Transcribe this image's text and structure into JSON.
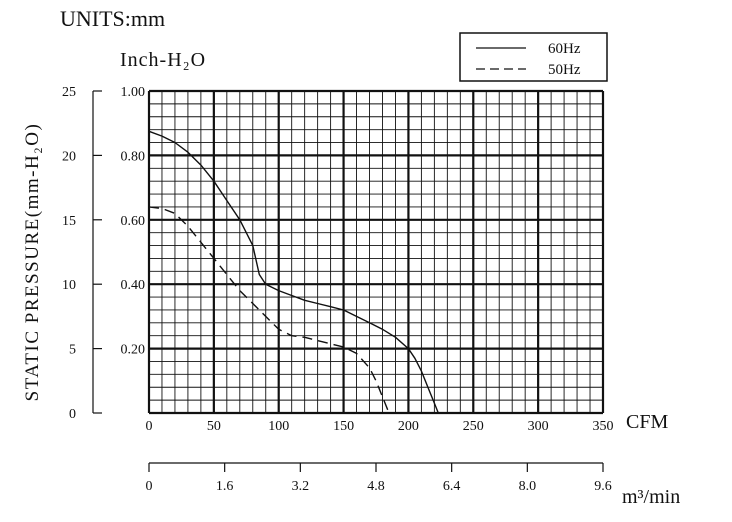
{
  "units_label": "UNITS:mm",
  "inch_label": "Inch-H₂O",
  "y_axis_label": "STATIC PRESSURE(mm-H₂O)",
  "chart_data": {
    "type": "line",
    "x_unit": "CFM",
    "xlim": [
      0,
      350
    ],
    "x_ticks": [
      0,
      50,
      100,
      150,
      200,
      250,
      300,
      350
    ],
    "x_tick_labels": [
      "0",
      "50",
      "100",
      "150",
      "200",
      "250",
      "300",
      "350"
    ],
    "secondary_x_unit": "m³/min",
    "secondary_xlim": [
      0,
      9.6
    ],
    "secondary_x_tick_labels": [
      "0",
      "1.6",
      "3.2",
      "4.8",
      "6.4",
      "8.0",
      "9.6"
    ],
    "ylim_inch": [
      0,
      1.0
    ],
    "y_inch_tick_labels": [
      "0.20",
      "0.40",
      "0.60",
      "0.80",
      "1.00"
    ],
    "ylim_mm": [
      0,
      25
    ],
    "y_mm_tick_labels": [
      "0",
      "5",
      "10",
      "15",
      "20",
      "25"
    ],
    "grid": true,
    "legend_position": "top-right",
    "series": [
      {
        "name": "60Hz",
        "style": "solid",
        "x": [
          0,
          10,
          20,
          30,
          40,
          50,
          60,
          70,
          80,
          85,
          90,
          100,
          110,
          120,
          130,
          140,
          150,
          160,
          170,
          180,
          190,
          200,
          205,
          210,
          215,
          220,
          223
        ],
        "y": [
          0.875,
          0.86,
          0.84,
          0.81,
          0.77,
          0.72,
          0.66,
          0.6,
          0.52,
          0.43,
          0.4,
          0.38,
          0.365,
          0.35,
          0.34,
          0.33,
          0.32,
          0.3,
          0.28,
          0.26,
          0.235,
          0.2,
          0.17,
          0.13,
          0.08,
          0.03,
          0
        ]
      },
      {
        "name": "50Hz",
        "style": "dashed",
        "x": [
          0,
          10,
          20,
          30,
          40,
          50,
          60,
          70,
          80,
          90,
          100,
          110,
          120,
          130,
          140,
          150,
          160,
          170,
          175,
          180,
          185
        ],
        "y": [
          0.64,
          0.635,
          0.62,
          0.58,
          0.53,
          0.48,
          0.43,
          0.38,
          0.34,
          0.3,
          0.26,
          0.24,
          0.235,
          0.225,
          0.215,
          0.205,
          0.185,
          0.14,
          0.1,
          0.05,
          0
        ]
      }
    ]
  }
}
